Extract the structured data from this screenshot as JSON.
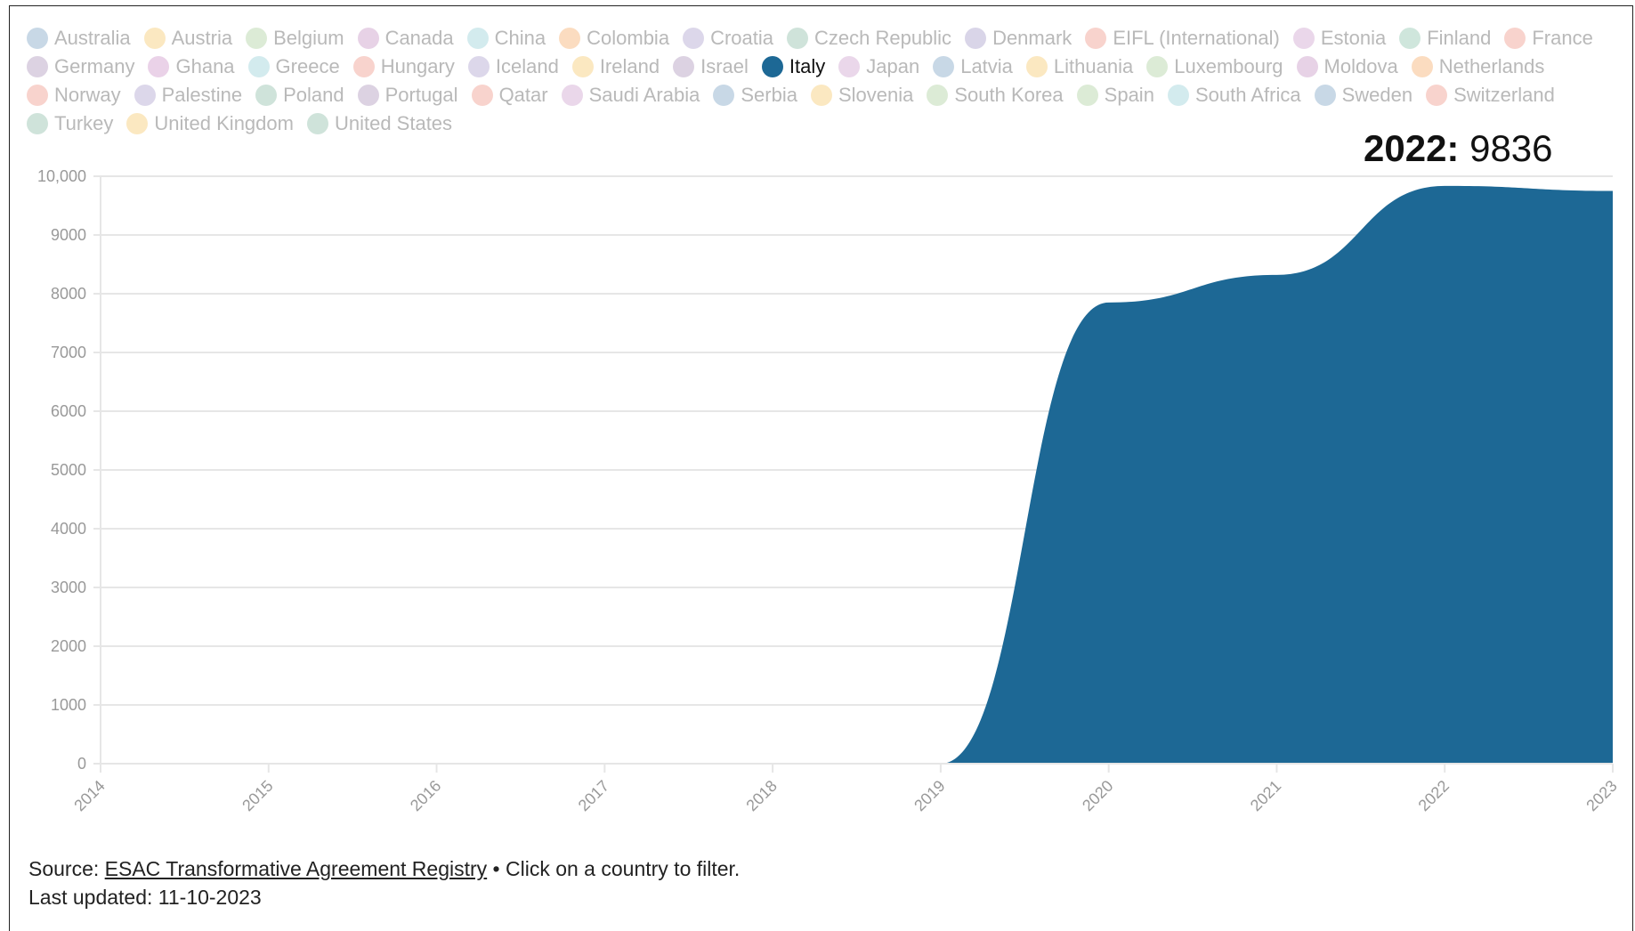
{
  "legend": {
    "items": [
      {
        "label": "Australia",
        "color": "#c8d8e6",
        "active": false
      },
      {
        "label": "Austria",
        "color": "#fbe8c1",
        "active": false
      },
      {
        "label": "Belgium",
        "color": "#dcebd6",
        "active": false
      },
      {
        "label": "Canada",
        "color": "#e7d2e6",
        "active": false
      },
      {
        "label": "China",
        "color": "#d3ebee",
        "active": false
      },
      {
        "label": "Colombia",
        "color": "#fbdcc0",
        "active": false
      },
      {
        "label": "Croatia",
        "color": "#dcd7ea",
        "active": false
      },
      {
        "label": "Czech Republic",
        "color": "#cfe3da",
        "active": false
      },
      {
        "label": "Denmark",
        "color": "#d9d5e8",
        "active": false
      },
      {
        "label": "EIFL (International)",
        "color": "#f8d3cd",
        "active": false
      },
      {
        "label": "Estonia",
        "color": "#ead7ea",
        "active": false
      },
      {
        "label": "Finland",
        "color": "#cfe6dc",
        "active": false
      },
      {
        "label": "France",
        "color": "#f8d3cd",
        "active": false
      },
      {
        "label": "Germany",
        "color": "#dcd2e2",
        "active": false
      },
      {
        "label": "Ghana",
        "color": "#ead2e8",
        "active": false
      },
      {
        "label": "Greece",
        "color": "#d3ebee",
        "active": false
      },
      {
        "label": "Hungary",
        "color": "#f8d3cd",
        "active": false
      },
      {
        "label": "Iceland",
        "color": "#dcd7ea",
        "active": false
      },
      {
        "label": "Ireland",
        "color": "#fbe8c1",
        "active": false
      },
      {
        "label": "Israel",
        "color": "#dcd2e2",
        "active": false
      },
      {
        "label": "Italy",
        "color": "#1d6895",
        "active": true
      },
      {
        "label": "Japan",
        "color": "#ead7ea",
        "active": false
      },
      {
        "label": "Latvia",
        "color": "#c8d8e6",
        "active": false
      },
      {
        "label": "Lithuania",
        "color": "#fbe8c1",
        "active": false
      },
      {
        "label": "Luxembourg",
        "color": "#dcebd6",
        "active": false
      },
      {
        "label": "Moldova",
        "color": "#e7d2e6",
        "active": false
      },
      {
        "label": "Netherlands",
        "color": "#fbdcc0",
        "active": false
      },
      {
        "label": "Norway",
        "color": "#f8d3cd",
        "active": false
      },
      {
        "label": "Palestine",
        "color": "#dcd7ea",
        "active": false
      },
      {
        "label": "Poland",
        "color": "#cfe3da",
        "active": false
      },
      {
        "label": "Portugal",
        "color": "#dcd2e2",
        "active": false
      },
      {
        "label": "Qatar",
        "color": "#f8d3cd",
        "active": false
      },
      {
        "label": "Saudi Arabia",
        "color": "#ead7ea",
        "active": false
      },
      {
        "label": "Serbia",
        "color": "#c8d8e6",
        "active": false
      },
      {
        "label": "Slovenia",
        "color": "#fbe8c1",
        "active": false
      },
      {
        "label": "South Korea",
        "color": "#dcebd6",
        "active": false
      },
      {
        "label": "Spain",
        "color": "#dcebd6",
        "active": false
      },
      {
        "label": "South Africa",
        "color": "#d3ebee",
        "active": false
      },
      {
        "label": "Sweden",
        "color": "#c8d8e6",
        "active": false
      },
      {
        "label": "Switzerland",
        "color": "#f8d3cd",
        "active": false
      },
      {
        "label": "Turkey",
        "color": "#cfe3da",
        "active": false
      },
      {
        "label": "United Kingdom",
        "color": "#fbe8c1",
        "active": false
      },
      {
        "label": "United States",
        "color": "#cfe3da",
        "active": false
      }
    ]
  },
  "annotation": {
    "year": "2022:",
    "value": "9836"
  },
  "footer": {
    "source_prefix": "Source: ",
    "source_link": "ESAC Transformative Agreement Registry",
    "source_suffix": " • Click on a country to filter.",
    "updated": "Last updated: 11-10-2023"
  },
  "chart_data": {
    "type": "area",
    "series": [
      {
        "name": "Italy",
        "color": "#1d6895",
        "x": [
          "2014",
          "2015",
          "2016",
          "2017",
          "2018",
          "2019",
          "2020",
          "2021",
          "2022",
          "2023"
        ],
        "values": [
          null,
          null,
          null,
          null,
          null,
          0,
          7850,
          8320,
          9836,
          9750
        ]
      }
    ],
    "x_ticks": [
      "2014",
      "2015",
      "2016",
      "2017",
      "2018",
      "2019",
      "2020",
      "2021",
      "2022",
      "2023"
    ],
    "y_ticks": [
      "0",
      "1000",
      "2000",
      "3000",
      "4000",
      "5000",
      "6000",
      "7000",
      "8000",
      "9000",
      "10,000"
    ],
    "ylim": [
      0,
      10000
    ],
    "grid": true,
    "axis_color": "#e6e6e6",
    "tick_color": "#999999"
  }
}
